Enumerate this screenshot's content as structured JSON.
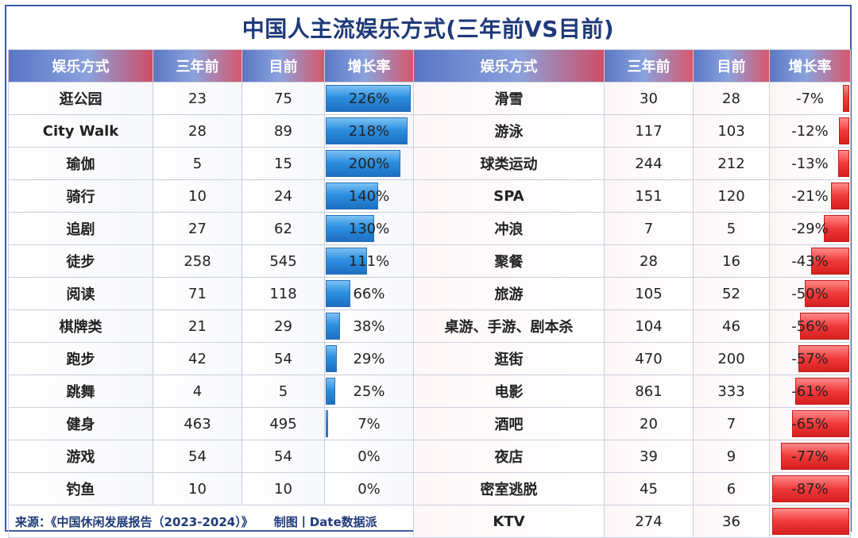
{
  "title": "中国人主流娱乐方式(三年前VS目前)",
  "columns": [
    "娱乐方式",
    "三年前",
    "目前",
    "增长率"
  ],
  "source_text": "来源：《中国休闲发展报告（2023-2024）》",
  "credit_text": "制图丨Date数据派",
  "colors": {
    "positive_bar": "#2d8fe0",
    "negative_bar": "#f03a3a",
    "title": "#1f3a7a"
  },
  "chart_data": {
    "type": "table",
    "title": "中国人主流娱乐方式(三年前VS目前)",
    "headers": [
      "娱乐方式",
      "三年前",
      "目前",
      "增长率"
    ],
    "left": [
      {
        "name": "逛公园",
        "before": "23",
        "now": "75",
        "growth": "226%",
        "growth_value": 226
      },
      {
        "name": "City Walk",
        "before": "28",
        "now": "89",
        "growth": "218%",
        "growth_value": 218
      },
      {
        "name": "瑜伽",
        "before": "5",
        "now": "15",
        "growth": "200%",
        "growth_value": 200
      },
      {
        "name": "骑行",
        "before": "10",
        "now": "24",
        "growth": "140%",
        "growth_value": 140
      },
      {
        "name": "追剧",
        "before": "27",
        "now": "62",
        "growth": "130%",
        "growth_value": 130
      },
      {
        "name": "徒步",
        "before": "258",
        "now": "545",
        "growth": "111%",
        "growth_value": 111
      },
      {
        "name": "阅读",
        "before": "71",
        "now": "118",
        "growth": "66%",
        "growth_value": 66
      },
      {
        "name": "棋牌类",
        "before": "21",
        "now": "29",
        "growth": "38%",
        "growth_value": 38
      },
      {
        "name": "跑步",
        "before": "42",
        "now": "54",
        "growth": "29%",
        "growth_value": 29
      },
      {
        "name": "跳舞",
        "before": "4",
        "now": "5",
        "growth": "25%",
        "growth_value": 25
      },
      {
        "name": "健身",
        "before": "463",
        "now": "495",
        "growth": "7%",
        "growth_value": 7
      },
      {
        "name": "游戏",
        "before": "54",
        "now": "54",
        "growth": "0%",
        "growth_value": 0
      },
      {
        "name": "钓鱼",
        "before": "10",
        "now": "10",
        "growth": "0%",
        "growth_value": 0
      }
    ],
    "right": [
      {
        "name": "滑雪",
        "before": "30",
        "now": "28",
        "growth": "-7%",
        "growth_value": -7
      },
      {
        "name": "游泳",
        "before": "117",
        "now": "103",
        "growth": "-12%",
        "growth_value": -12
      },
      {
        "name": "球类运动",
        "before": "244",
        "now": "212",
        "growth": "-13%",
        "growth_value": -13
      },
      {
        "name": "SPA",
        "before": "151",
        "now": "120",
        "growth": "-21%",
        "growth_value": -21
      },
      {
        "name": "冲浪",
        "before": "7",
        "now": "5",
        "growth": "-29%",
        "growth_value": -29
      },
      {
        "name": "聚餐",
        "before": "28",
        "now": "16",
        "growth": "-43%",
        "growth_value": -43
      },
      {
        "name": "旅游",
        "before": "105",
        "now": "52",
        "growth": "-50%",
        "growth_value": -50
      },
      {
        "name": "桌游、手游、剧本杀",
        "before": "104",
        "now": "46",
        "growth": "-56%",
        "growth_value": -56
      },
      {
        "name": "逛街",
        "before": "470",
        "now": "200",
        "growth": "-57%",
        "growth_value": -57
      },
      {
        "name": "电影",
        "before": "861",
        "now": "333",
        "growth": "-61%",
        "growth_value": -61
      },
      {
        "name": "酒吧",
        "before": "20",
        "now": "7",
        "growth": "-65%",
        "growth_value": -65
      },
      {
        "name": "夜店",
        "before": "39",
        "now": "9",
        "growth": "-77%",
        "growth_value": -77
      },
      {
        "name": "密室逃脱",
        "before": "45",
        "now": "6",
        "growth": "-87%",
        "growth_value": -87
      },
      {
        "name": "KTV",
        "before": "274",
        "now": "36",
        "growth": "",
        "growth_value": -87
      }
    ]
  }
}
